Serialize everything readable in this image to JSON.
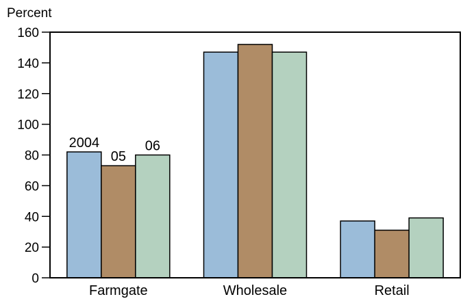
{
  "chart_data": {
    "type": "bar",
    "ylabel": "Percent",
    "ylim": [
      0,
      160
    ],
    "yticks": [
      0,
      20,
      40,
      60,
      80,
      100,
      120,
      140,
      160
    ],
    "categories": [
      "Farmgate",
      "Wholesale",
      "Retail"
    ],
    "series": [
      {
        "name": "2004",
        "color": "#9bbcd9",
        "values": [
          82,
          147,
          37
        ]
      },
      {
        "name": "05",
        "color": "#b08c66",
        "values": [
          73,
          152,
          31
        ]
      },
      {
        "name": "06",
        "color": "#b4d1bf",
        "values": [
          80,
          147,
          39
        ]
      }
    ],
    "series_labels_shown_on_category": "Farmgate",
    "grid": false
  }
}
